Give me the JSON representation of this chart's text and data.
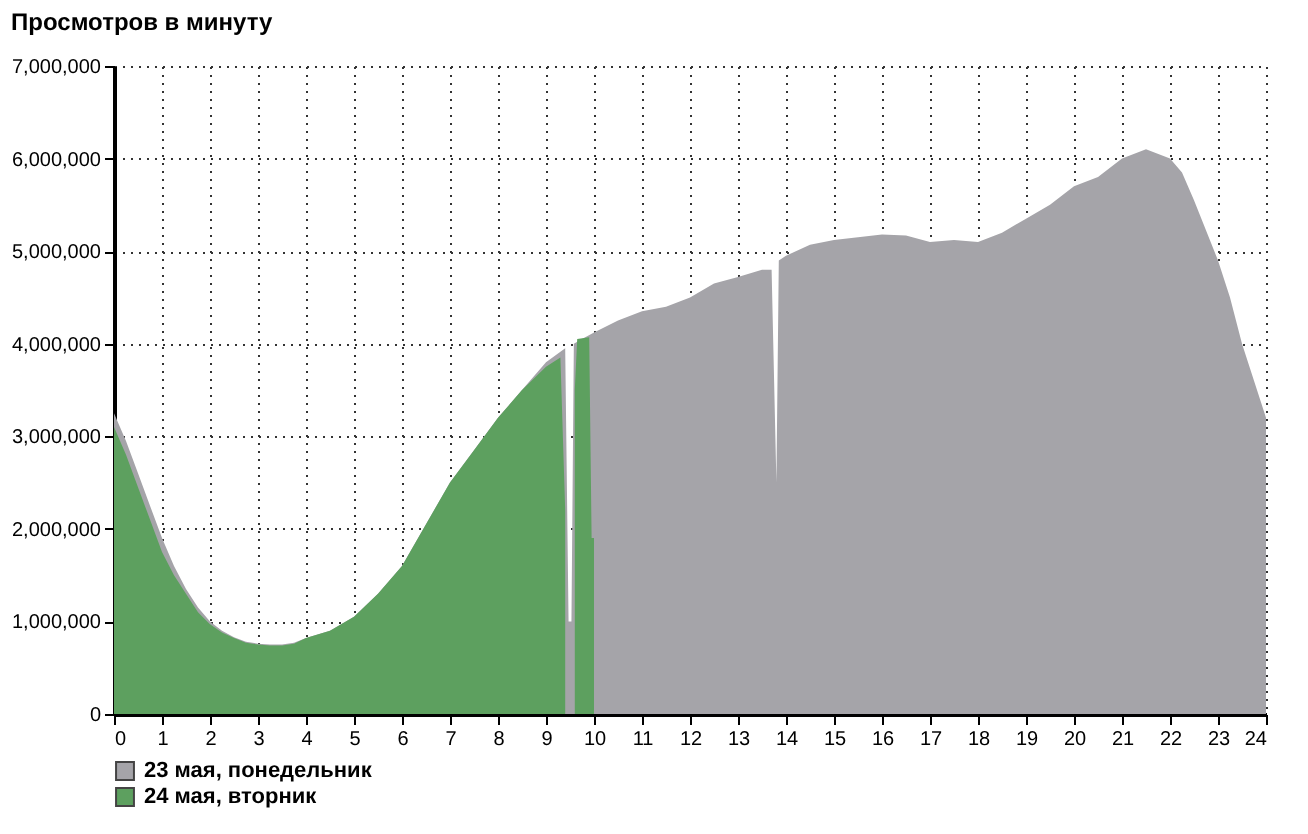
{
  "chart_data": {
    "type": "area",
    "title": "Просмотров в минуту",
    "xlim": [
      0,
      24
    ],
    "xticks": [
      0,
      1,
      2,
      3,
      4,
      5,
      6,
      7,
      8,
      9,
      10,
      11,
      12,
      13,
      14,
      15,
      16,
      17,
      18,
      19,
      20,
      21,
      22,
      23,
      24
    ],
    "ylim": [
      0,
      7000000
    ],
    "yticks": [
      0,
      {
        "value": 1000000,
        "label": "1,000,000"
      },
      {
        "value": 2000000,
        "label": "2,000,000"
      },
      {
        "value": 3000000,
        "label": "3,000,000"
      },
      {
        "value": 4000000,
        "label": "4,000,000"
      },
      {
        "value": 5000000,
        "label": "5,000,000"
      },
      {
        "value": 6000000,
        "label": "6,000,000"
      },
      {
        "value": 7000000,
        "label": "7,000,000"
      }
    ],
    "grid": true,
    "legend": "bottom left",
    "series": [
      {
        "name": "23 мая, понедельник",
        "color": "#a5a4a9",
        "x": [
          0,
          0.25,
          0.5,
          0.75,
          1,
          1.25,
          1.5,
          1.75,
          2,
          2.25,
          2.5,
          2.75,
          3,
          3.25,
          3.5,
          3.75,
          4,
          4.5,
          5,
          5.5,
          6,
          6.5,
          7,
          7.5,
          8,
          8.5,
          9,
          9.4,
          9.47,
          9.53,
          9.58,
          9.75,
          10,
          10.5,
          11,
          11.5,
          12,
          12.5,
          13,
          13.5,
          13.7,
          13.8,
          13.85,
          14,
          14.5,
          15,
          15.5,
          16,
          16.5,
          17,
          17.5,
          18,
          18.5,
          19,
          19.5,
          20,
          20.5,
          21,
          21.5,
          22,
          22.25,
          22.5,
          23,
          23.25,
          23.5,
          23.75,
          24
        ],
        "values": [
          3250000,
          2950000,
          2600000,
          2250000,
          1900000,
          1600000,
          1350000,
          1150000,
          1000000,
          900000,
          830000,
          780000,
          760000,
          750000,
          750000,
          770000,
          820000,
          900000,
          1050000,
          1300000,
          1600000,
          2050000,
          2500000,
          2850000,
          3200000,
          3500000,
          3800000,
          3950000,
          1000000,
          1000000,
          4000000,
          4050000,
          4120000,
          4250000,
          4350000,
          4400000,
          4500000,
          4650000,
          4720000,
          4800000,
          4800000,
          2500000,
          4900000,
          4950000,
          5070000,
          5120000,
          5150000,
          5180000,
          5170000,
          5100000,
          5120000,
          5100000,
          5200000,
          5350000,
          5500000,
          5700000,
          5800000,
          6000000,
          6100000,
          6000000,
          5850000,
          5550000,
          4900000,
          4500000,
          4000000,
          3600000,
          3200000
        ]
      },
      {
        "name": "24 мая, вторник",
        "color": "#5da05f",
        "x": [
          0,
          0.25,
          0.5,
          0.75,
          1,
          1.25,
          1.5,
          1.75,
          2,
          2.25,
          2.5,
          2.75,
          3,
          3.25,
          3.5,
          3.75,
          4,
          4.5,
          5,
          5.5,
          6,
          6.5,
          7,
          7.5,
          8,
          8.5,
          9,
          9.3,
          9.4,
          9.46,
          9.54,
          9.6,
          9.65,
          9.9,
          9.95,
          10
        ],
        "values": [
          3100000,
          2800000,
          2450000,
          2100000,
          1750000,
          1500000,
          1300000,
          1100000,
          970000,
          880000,
          820000,
          770000,
          750000,
          740000,
          740000,
          760000,
          820000,
          900000,
          1050000,
          1300000,
          1600000,
          2050000,
          2500000,
          2850000,
          3200000,
          3500000,
          3750000,
          3850000,
          2200000,
          null,
          null,
          3500000,
          4050000,
          4070000,
          1900000,
          1900000
        ]
      }
    ]
  }
}
